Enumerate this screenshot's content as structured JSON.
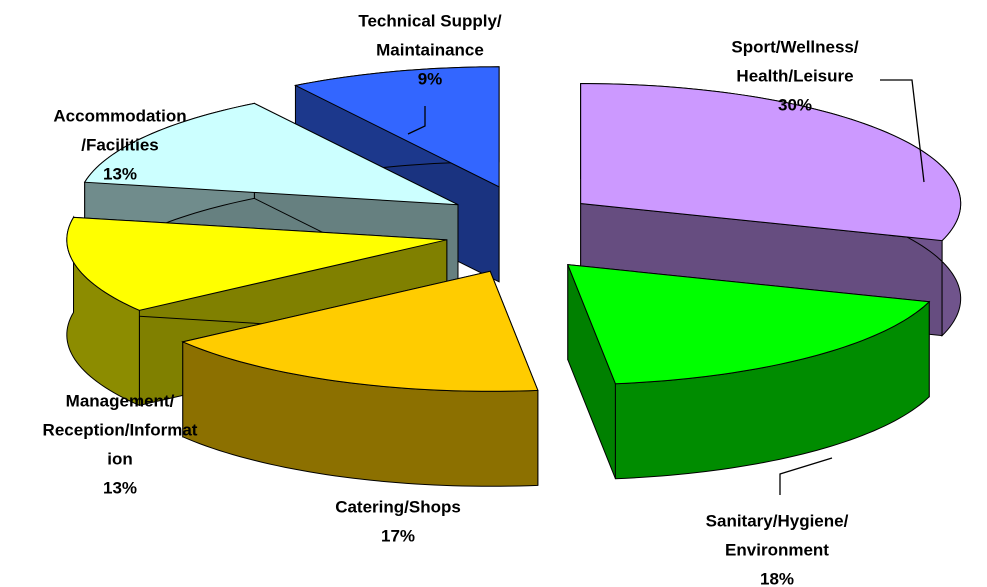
{
  "chart_data": {
    "type": "pie3d",
    "labels": [
      [
        "Sport/Wellness/",
        "Health/Leisure"
      ],
      [
        "Sanitary/Hygiene/",
        "Environment"
      ],
      [
        "Catering/Shops"
      ],
      [
        "Management/",
        "Reception/Informat",
        "ion"
      ],
      [
        "Accommodation",
        "/Facilities"
      ],
      [
        "Technical Supply/",
        "Maintainance"
      ]
    ],
    "values": [
      30,
      18,
      17,
      13,
      13,
      9
    ],
    "value_labels": [
      "30%",
      "18%",
      "17%",
      "13%",
      "13%",
      "9%"
    ],
    "colors": [
      "#cc99ff",
      "#00ff00",
      "#ffcc00",
      "#ffff00",
      "#ccffff",
      "#3366ff"
    ]
  }
}
